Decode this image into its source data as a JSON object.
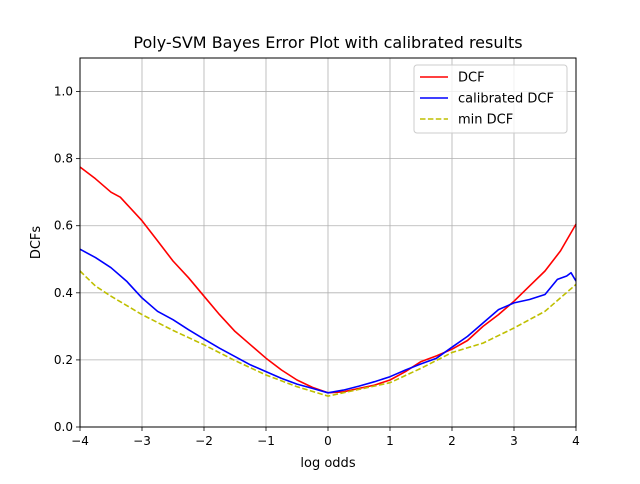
{
  "chart_data": {
    "type": "line",
    "title": "Poly-SVM Bayes Error Plot with calibrated results",
    "xlabel": "log odds",
    "ylabel": "DCFs",
    "xlim": [
      -4,
      4
    ],
    "ylim": [
      0,
      1.1
    ],
    "grid": true,
    "legend_position": "top-right",
    "x_ticks": [
      {
        "value": -4,
        "label": "−4"
      },
      {
        "value": -3,
        "label": "−3"
      },
      {
        "value": -2,
        "label": "−2"
      },
      {
        "value": -1,
        "label": "−1"
      },
      {
        "value": 0,
        "label": "0"
      },
      {
        "value": 1,
        "label": "1"
      },
      {
        "value": 2,
        "label": "2"
      },
      {
        "value": 3,
        "label": "3"
      },
      {
        "value": 4,
        "label": "4"
      }
    ],
    "y_ticks": [
      {
        "value": 0.0,
        "label": "0.0"
      },
      {
        "value": 0.2,
        "label": "0.2"
      },
      {
        "value": 0.4,
        "label": "0.4"
      },
      {
        "value": 0.6,
        "label": "0.6"
      },
      {
        "value": 0.8,
        "label": "0.8"
      },
      {
        "value": 1.0,
        "label": "1.0"
      }
    ],
    "series": [
      {
        "name": "DCF",
        "color": "#ff0000",
        "style": "solid",
        "points": [
          [
            -4,
            0.775
          ],
          [
            -3.75,
            0.74
          ],
          [
            -3.5,
            0.7
          ],
          [
            -3.35,
            0.685
          ],
          [
            -3.25,
            0.665
          ],
          [
            -3,
            0.615
          ],
          [
            -2.75,
            0.555
          ],
          [
            -2.5,
            0.495
          ],
          [
            -2.25,
            0.445
          ],
          [
            -2,
            0.39
          ],
          [
            -1.75,
            0.335
          ],
          [
            -1.5,
            0.285
          ],
          [
            -1.25,
            0.245
          ],
          [
            -1,
            0.205
          ],
          [
            -0.75,
            0.17
          ],
          [
            -0.5,
            0.14
          ],
          [
            -0.25,
            0.118
          ],
          [
            0,
            0.102
          ],
          [
            0.25,
            0.105
          ],
          [
            0.5,
            0.115
          ],
          [
            0.75,
            0.125
          ],
          [
            1,
            0.14
          ],
          [
            1.25,
            0.165
          ],
          [
            1.5,
            0.195
          ],
          [
            1.75,
            0.212
          ],
          [
            2,
            0.232
          ],
          [
            2.25,
            0.258
          ],
          [
            2.5,
            0.3
          ],
          [
            2.75,
            0.335
          ],
          [
            3,
            0.375
          ],
          [
            3.25,
            0.42
          ],
          [
            3.5,
            0.465
          ],
          [
            3.75,
            0.525
          ],
          [
            4,
            0.605
          ]
        ]
      },
      {
        "name": "calibrated DCF",
        "color": "#0000ff",
        "style": "solid",
        "points": [
          [
            -4,
            0.53
          ],
          [
            -3.75,
            0.505
          ],
          [
            -3.5,
            0.475
          ],
          [
            -3.25,
            0.435
          ],
          [
            -3,
            0.385
          ],
          [
            -2.75,
            0.345
          ],
          [
            -2.5,
            0.32
          ],
          [
            -2.25,
            0.29
          ],
          [
            -2,
            0.262
          ],
          [
            -1.75,
            0.235
          ],
          [
            -1.5,
            0.21
          ],
          [
            -1.25,
            0.185
          ],
          [
            -1,
            0.165
          ],
          [
            -0.75,
            0.145
          ],
          [
            -0.5,
            0.128
          ],
          [
            -0.25,
            0.115
          ],
          [
            0,
            0.102
          ],
          [
            0.25,
            0.11
          ],
          [
            0.5,
            0.122
          ],
          [
            0.75,
            0.135
          ],
          [
            1,
            0.15
          ],
          [
            1.25,
            0.17
          ],
          [
            1.5,
            0.188
          ],
          [
            1.75,
            0.205
          ],
          [
            2,
            0.238
          ],
          [
            2.25,
            0.27
          ],
          [
            2.5,
            0.31
          ],
          [
            2.75,
            0.35
          ],
          [
            3,
            0.37
          ],
          [
            3.25,
            0.38
          ],
          [
            3.5,
            0.395
          ],
          [
            3.7,
            0.44
          ],
          [
            3.85,
            0.45
          ],
          [
            3.92,
            0.46
          ],
          [
            4,
            0.435
          ]
        ]
      },
      {
        "name": "min DCF",
        "color": "#bfbf00",
        "style": "dashed",
        "points": [
          [
            -4,
            0.465
          ],
          [
            -3.75,
            0.42
          ],
          [
            -3.5,
            0.39
          ],
          [
            -3,
            0.335
          ],
          [
            -2.5,
            0.288
          ],
          [
            -2,
            0.245
          ],
          [
            -1.5,
            0.198
          ],
          [
            -1,
            0.155
          ],
          [
            -0.5,
            0.12
          ],
          [
            0,
            0.092
          ],
          [
            0.5,
            0.112
          ],
          [
            1,
            0.132
          ],
          [
            1.5,
            0.175
          ],
          [
            2,
            0.222
          ],
          [
            2.5,
            0.25
          ],
          [
            3,
            0.295
          ],
          [
            3.5,
            0.345
          ],
          [
            4,
            0.425
          ]
        ]
      }
    ]
  }
}
